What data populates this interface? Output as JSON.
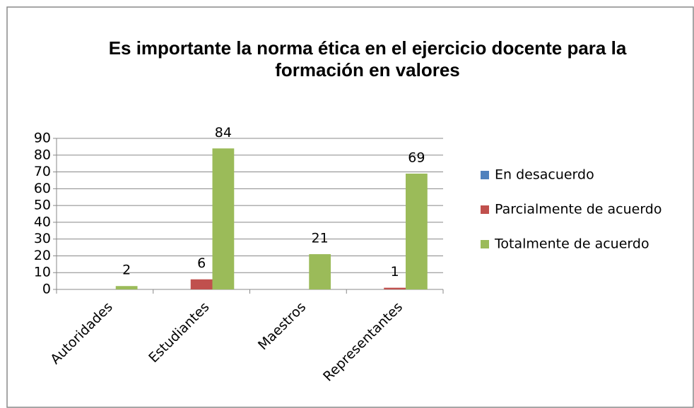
{
  "chart_data": {
    "type": "bar",
    "title": [
      "Es importante la norma ética en el ejercicio docente para la",
      "formación en valores"
    ],
    "categories": [
      "Autoridades",
      "Estudiantes",
      "Maestros",
      "Representantes"
    ],
    "series": [
      {
        "name": "En desacuerdo",
        "color": "#4f81bd",
        "values": [
          0,
          0,
          0,
          0
        ]
      },
      {
        "name": "Parcialmente de acuerdo",
        "color": "#c0504d",
        "values": [
          0,
          6,
          0,
          1
        ]
      },
      {
        "name": "Totalmente de acuerdo",
        "color": "#9bbb59",
        "values": [
          2,
          84,
          21,
          69
        ]
      }
    ],
    "ylim": [
      0,
      90
    ],
    "yticks": [
      0,
      10,
      20,
      30,
      40,
      50,
      60,
      70,
      80,
      90
    ],
    "grid": true,
    "legend": "right"
  }
}
